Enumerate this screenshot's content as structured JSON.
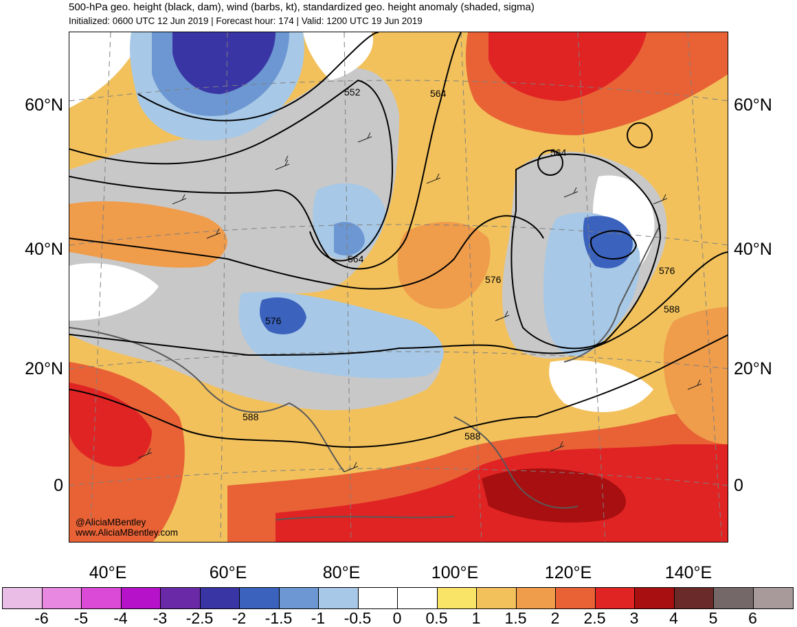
{
  "header": {
    "title": "500-hPa geo. height (black, dam), wind (barbs, kt), standardized geo. height anomaly (shaded, sigma)",
    "subtitle": "Initialized: 0600 UTC 12 Jun 2019 | Forecast hour: 174 | Valid: 1200 UTC 19 Jun 2019"
  },
  "latitude_labels": [
    "60°N",
    "40°N",
    "20°N",
    "0"
  ],
  "longitude_labels": [
    "40°E",
    "60°E",
    "80°E",
    "100°E",
    "120°E",
    "140°E"
  ],
  "contour_labels": [
    "552",
    "564",
    "564",
    "564",
    "576",
    "576",
    "576",
    "588",
    "588",
    "588"
  ],
  "credits": [
    "@AliciaMBentley",
    "www.AliciaMBentley.com"
  ],
  "colorbar": {
    "labels": [
      "-6",
      "-5",
      "-4",
      "-3",
      "-2.5",
      "-2",
      "-1.5",
      "-1",
      "-0.5",
      "0",
      "0.5",
      "1",
      "1.5",
      "2",
      "2.5",
      "3",
      "4",
      "5",
      "6"
    ],
    "colors": [
      "#e9bde6",
      "#e888e0",
      "#da4ad7",
      "#b612c9",
      "#6a2aa8",
      "#3a35a4",
      "#3b62bd",
      "#6c97d2",
      "#a7c8e6",
      "#ffffff",
      "#ffffff",
      "#f9e468",
      "#f2c15c",
      "#ef9c4b",
      "#e86236",
      "#e02423",
      "#a80f10",
      "#6b2a2a",
      "#746868",
      "#a89a9a"
    ]
  },
  "legend_colors": {
    "neutral_gray": "#c8c8c8",
    "coast": "#595959",
    "contour": "#000000"
  }
}
